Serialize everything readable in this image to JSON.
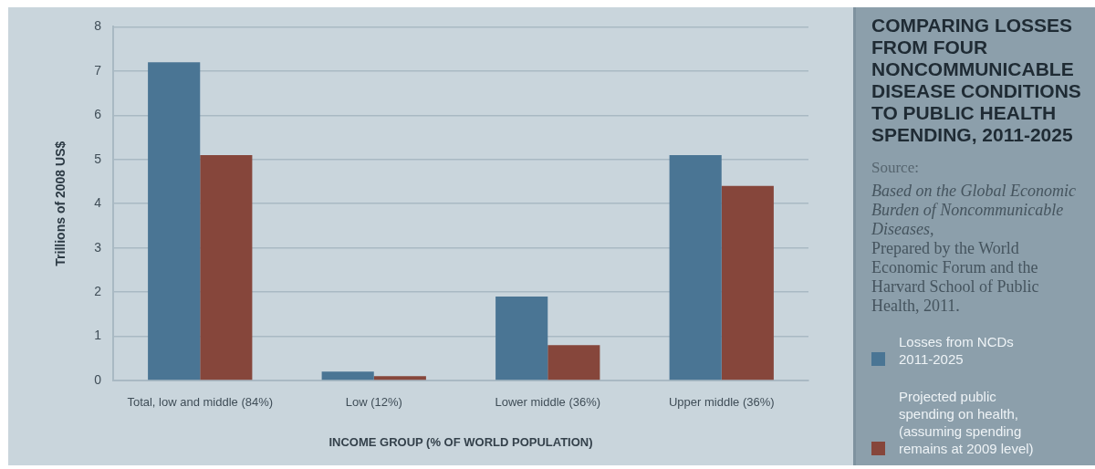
{
  "chart_data": {
    "type": "bar",
    "title": "COMPARING LOSSES FROM FOUR NONCOMMUNICABLE DISEASE CONDITIONS TO PUBLIC HEALTH SPENDING, 2011-2025",
    "xlabel": "INCOME GROUP (% OF WORLD POPULATION)",
    "ylabel": "Trillions of 2008 US$",
    "annotations": [
      "Source:",
      "Based on the Global Economic Burden of Noncommunicable Diseases,",
      "Prepared by the World Economic Forum and the Harvard School of Public Health, 2011."
    ],
    "categories": [
      "Total, low and middle (84%)",
      "Low (12%)",
      "Lower middle (36%)",
      "Upper middle (36%)"
    ],
    "series": [
      {
        "name": "Losses from NCDs 2011-2025",
        "color": "#4a7594",
        "values": [
          7.2,
          0.2,
          1.9,
          5.1
        ]
      },
      {
        "name": "Projected public spending on health, (assuming spending remains at 2009 level)",
        "color": "#86463b",
        "values": [
          5.1,
          0.1,
          0.8,
          4.4
        ]
      }
    ],
    "ylim": [
      0,
      8
    ],
    "yticks": [
      0,
      1,
      2,
      3,
      4,
      5,
      6,
      7,
      8
    ],
    "grid": "y",
    "legend": "right"
  }
}
